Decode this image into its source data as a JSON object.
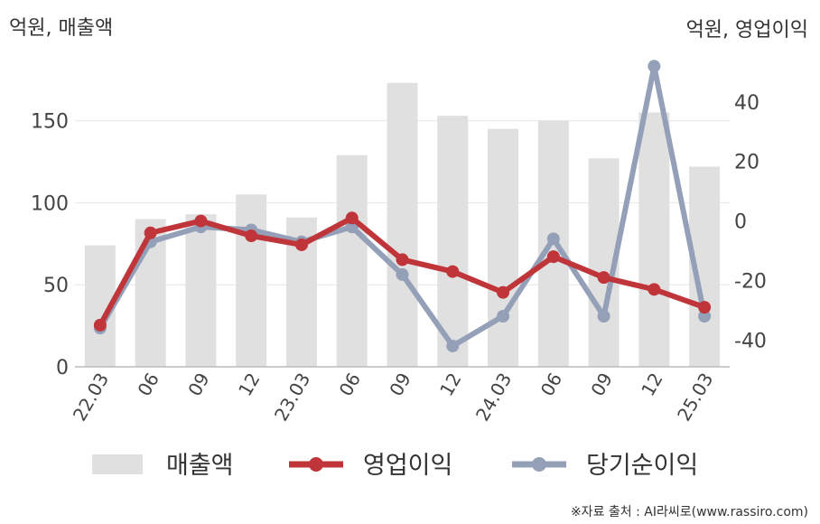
{
  "chart_data": {
    "type": "bar+line",
    "left_axis_title": "억원, 매출액",
    "right_axis_title": "억원, 영업이익",
    "categories": [
      "22.03",
      "06",
      "09",
      "12",
      "23.03",
      "06",
      "09",
      "12",
      "24.03",
      "06",
      "09",
      "12",
      "25.03"
    ],
    "left_ylim": [
      0,
      185
    ],
    "left_ticks": [
      0,
      50,
      100,
      150
    ],
    "right_ylim": [
      -49,
      53
    ],
    "right_ticks": [
      -40,
      -20,
      0,
      20,
      40
    ],
    "series": [
      {
        "name": "매출액",
        "type": "bar",
        "axis": "left",
        "color": "#e0e0e0",
        "values": [
          74,
          90,
          93,
          105,
          91,
          129,
          173,
          153,
          145,
          150,
          127,
          155,
          122
        ]
      },
      {
        "name": "영업이익",
        "type": "line",
        "axis": "right",
        "color": "#c0353a",
        "values": [
          -35,
          -4,
          0,
          -5,
          -8,
          1,
          -13,
          -17,
          -24,
          -12,
          -19,
          -23,
          -29
        ]
      },
      {
        "name": "당기순이익",
        "type": "line",
        "axis": "right",
        "color": "#94a0b8",
        "values": [
          -36,
          -7,
          -2,
          -3,
          -7,
          -2,
          -18,
          -42,
          -32,
          -6,
          -32,
          52,
          -32
        ]
      }
    ],
    "grid": "horizontal",
    "legend_position": "bottom"
  },
  "source_text": "※자료 출처 : AI라씨로(www.rassiro.com)"
}
